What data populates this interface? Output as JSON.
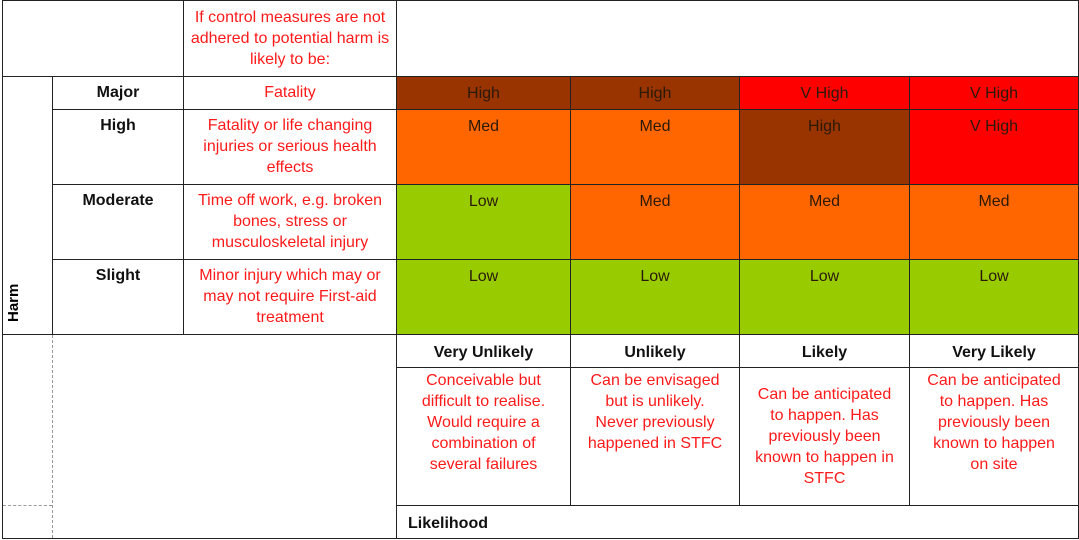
{
  "header_text": "If control measures are not adhered to potential harm is likely to be:",
  "harm_label": "Harm",
  "likelihood_label": "Likelihood",
  "colors": {
    "Low": "#99cc00",
    "Med": "#ff6600",
    "High": "#993300",
    "V High": "#ff0000"
  },
  "severity": [
    {
      "label": "Major",
      "desc": "Fatality",
      "risks": [
        "High",
        "High",
        "V High",
        "V High"
      ]
    },
    {
      "label": "High",
      "desc": "Fatality or life changing injuries or serious health effects",
      "risks": [
        "Med",
        "Med",
        "High",
        "V High"
      ]
    },
    {
      "label": "Moderate",
      "desc": "Time off work, e.g. broken bones, stress or musculoskeletal injury",
      "risks": [
        "Low",
        "Med",
        "Med",
        "Med"
      ]
    },
    {
      "label": "Slight",
      "desc": "Minor injury which may or may not require First-aid treatment",
      "risks": [
        "Low",
        "Low",
        "Low",
        "Low"
      ]
    }
  ],
  "likelihood": [
    {
      "label": "Very Unlikely",
      "desc": "Conceivable but difficult to realise. Would require a combination of several failures"
    },
    {
      "label": "Unlikely",
      "desc": "Can be envisaged but is unlikely. Never previously happened in STFC"
    },
    {
      "label": "Likely",
      "desc": "Can be anticipated to happen. Has previously been known to happen in STFC"
    },
    {
      "label": "Very Likely",
      "desc": "Can be anticipated to happen. Has previously been known to happen on site"
    }
  ]
}
